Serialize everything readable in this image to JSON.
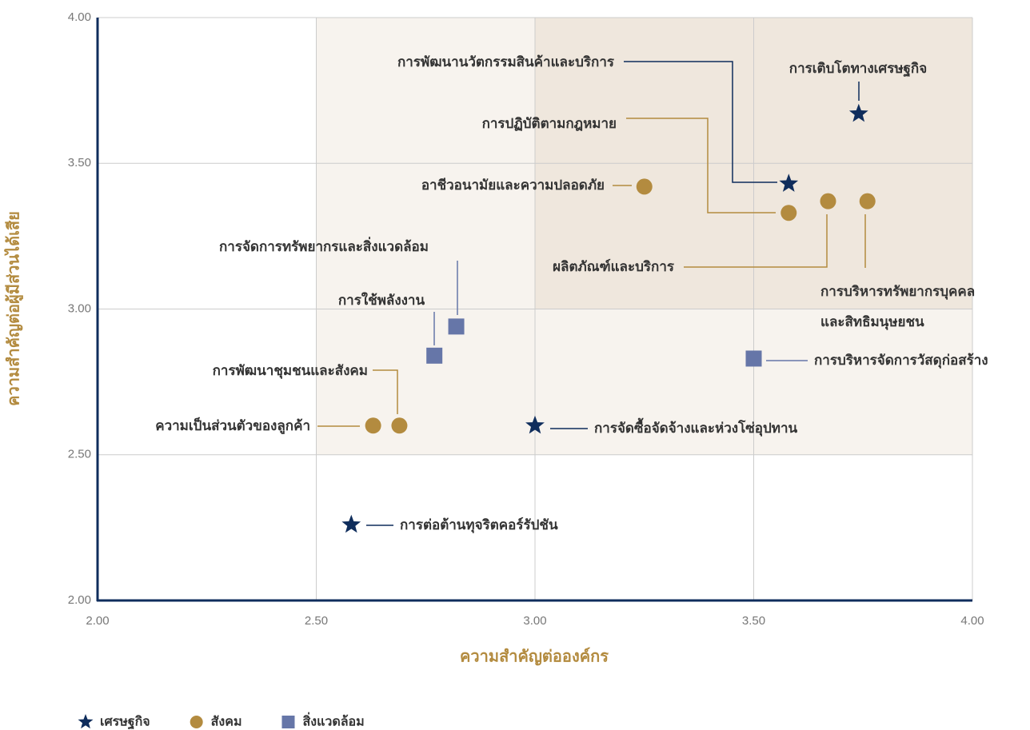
{
  "chart_data": {
    "type": "scatter",
    "x_label": "ความสำคัญต่อองค์กร",
    "y_label": "ความสำคัญต่อผู้มีส่วนได้เสีย",
    "xlim": [
      2,
      4
    ],
    "ylim": [
      2,
      4
    ],
    "xticks": [
      {
        "value": 2,
        "label": "2.00"
      },
      {
        "value": 2.5,
        "label": "2.50"
      },
      {
        "value": 3,
        "label": "3.00"
      },
      {
        "value": 3.5,
        "label": "3.50"
      },
      {
        "value": 4,
        "label": "4.00"
      }
    ],
    "yticks": [
      {
        "value": 2,
        "label": "2.00"
      },
      {
        "value": 2.5,
        "label": "2.50"
      },
      {
        "value": 3,
        "label": "3.00"
      },
      {
        "value": 3.5,
        "label": "3.50"
      },
      {
        "value": 4,
        "label": "4.00"
      }
    ],
    "grid": true,
    "legend": "bottom-left",
    "series": [
      {
        "name": "เศรษฐกิจ",
        "color": "#0f2d5c",
        "marker": "star",
        "x": [
          3.74,
          3.58,
          3.0,
          2.58
        ],
        "values": [
          3.67,
          3.43,
          2.6,
          2.26
        ],
        "labels": [
          [
            "การเติบโตทางเศรษฐกิจ"
          ],
          [
            "การพัฒนานวัตกรรมสินค้าและบริการ"
          ],
          [
            "การจัดซื้อจัดจ้างและห่วงโซ่อุปทาน"
          ],
          [
            "การต่อต้านทุจริตคอร์รัปชัน"
          ]
        ]
      },
      {
        "name": "สังคม",
        "color": "#b38b3f",
        "marker": "circle",
        "x": [
          3.25,
          3.58,
          3.67,
          3.76,
          2.69,
          2.63
        ],
        "values": [
          3.42,
          3.33,
          3.37,
          3.37,
          2.6,
          2.6
        ],
        "labels": [
          [
            "อาชีวอนามัยและความปลอดภัย"
          ],
          [
            "การปฏิบัติตามกฎหมาย"
          ],
          [
            "ผลิตภัณฑ์และบริการ"
          ],
          [
            "การบริหารทรัพยากรบุคคล",
            "และสิทธิมนุษยชน"
          ],
          [
            "การพัฒนาชุมชนและสังคม"
          ],
          [
            "ความเป็นส่วนตัวของลูกค้า"
          ]
        ]
      },
      {
        "name": "สิ่งแวดล้อม",
        "color": "#6676a8",
        "marker": "square",
        "x": [
          2.82,
          2.77,
          3.5
        ],
        "values": [
          2.94,
          2.84,
          2.83
        ],
        "labels": [
          [
            "การจัดการทรัพยากรและสิ่งแวดล้อม"
          ],
          [
            "การใช้พลังงาน"
          ],
          [
            "การบริหารจัดการวัสดุก่อสร้าง"
          ]
        ]
      }
    ]
  }
}
